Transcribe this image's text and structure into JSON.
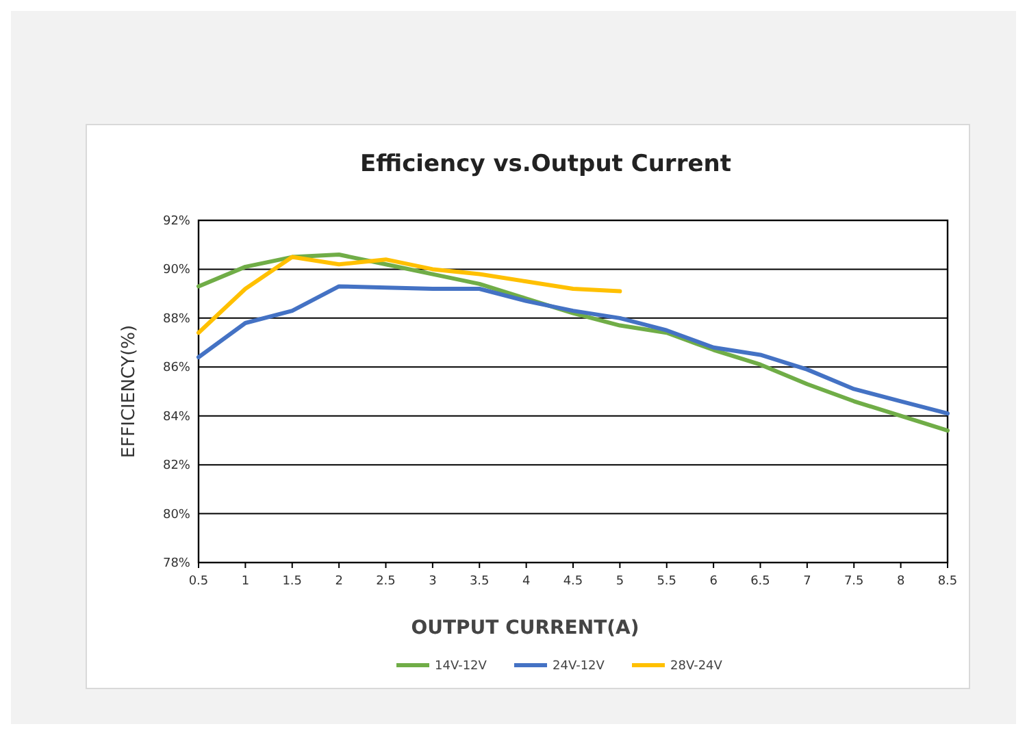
{
  "chart_data": {
    "type": "line",
    "title": "Efficiency vs.Output Current",
    "xlabel": "OUTPUT CURRENT(A)",
    "ylabel": "EFFICIENCY(%)",
    "x": [
      0.5,
      1,
      1.5,
      2,
      2.5,
      3,
      3.5,
      4,
      4.5,
      5,
      5.5,
      6,
      6.5,
      7,
      7.5,
      8,
      8.5
    ],
    "series": [
      {
        "name": "14V-12V",
        "color": "#70ad47",
        "values": [
          89.3,
          90.1,
          90.5,
          90.6,
          90.2,
          89.8,
          89.4,
          88.8,
          88.2,
          87.7,
          87.4,
          86.7,
          86.1,
          85.3,
          84.6,
          84.0,
          83.4
        ]
      },
      {
        "name": "24V-12V",
        "color": "#4472c4",
        "values": [
          86.4,
          87.8,
          88.3,
          89.3,
          89.25,
          89.2,
          89.2,
          88.7,
          88.3,
          88.0,
          87.5,
          86.8,
          86.5,
          85.9,
          85.1,
          84.6,
          84.1
        ]
      },
      {
        "name": "28V-24V",
        "color": "#ffc000",
        "values": [
          87.4,
          89.2,
          90.5,
          90.2,
          90.4,
          90.0,
          89.8,
          89.5,
          89.2,
          89.1,
          null,
          null,
          null,
          null,
          null,
          null,
          null
        ]
      }
    ],
    "xlim": [
      0.5,
      8.5
    ],
    "xticks": [
      0.5,
      1,
      1.5,
      2,
      2.5,
      3,
      3.5,
      4,
      4.5,
      5,
      5.5,
      6,
      6.5,
      7,
      7.5,
      8,
      8.5
    ],
    "ylim": [
      78,
      92
    ],
    "yticks": [
      {
        "value": 78,
        "label": "78%"
      },
      {
        "value": 80,
        "label": "80%"
      },
      {
        "value": 82,
        "label": "82%"
      },
      {
        "value": 84,
        "label": "84%"
      },
      {
        "value": 86,
        "label": "86%"
      },
      {
        "value": 88,
        "label": "88%"
      },
      {
        "value": 90,
        "label": "90%"
      },
      {
        "value": 92,
        "label": "92%"
      }
    ],
    "grid": "y",
    "legend": "bottom",
    "marker": "none",
    "line_style": "solid"
  }
}
